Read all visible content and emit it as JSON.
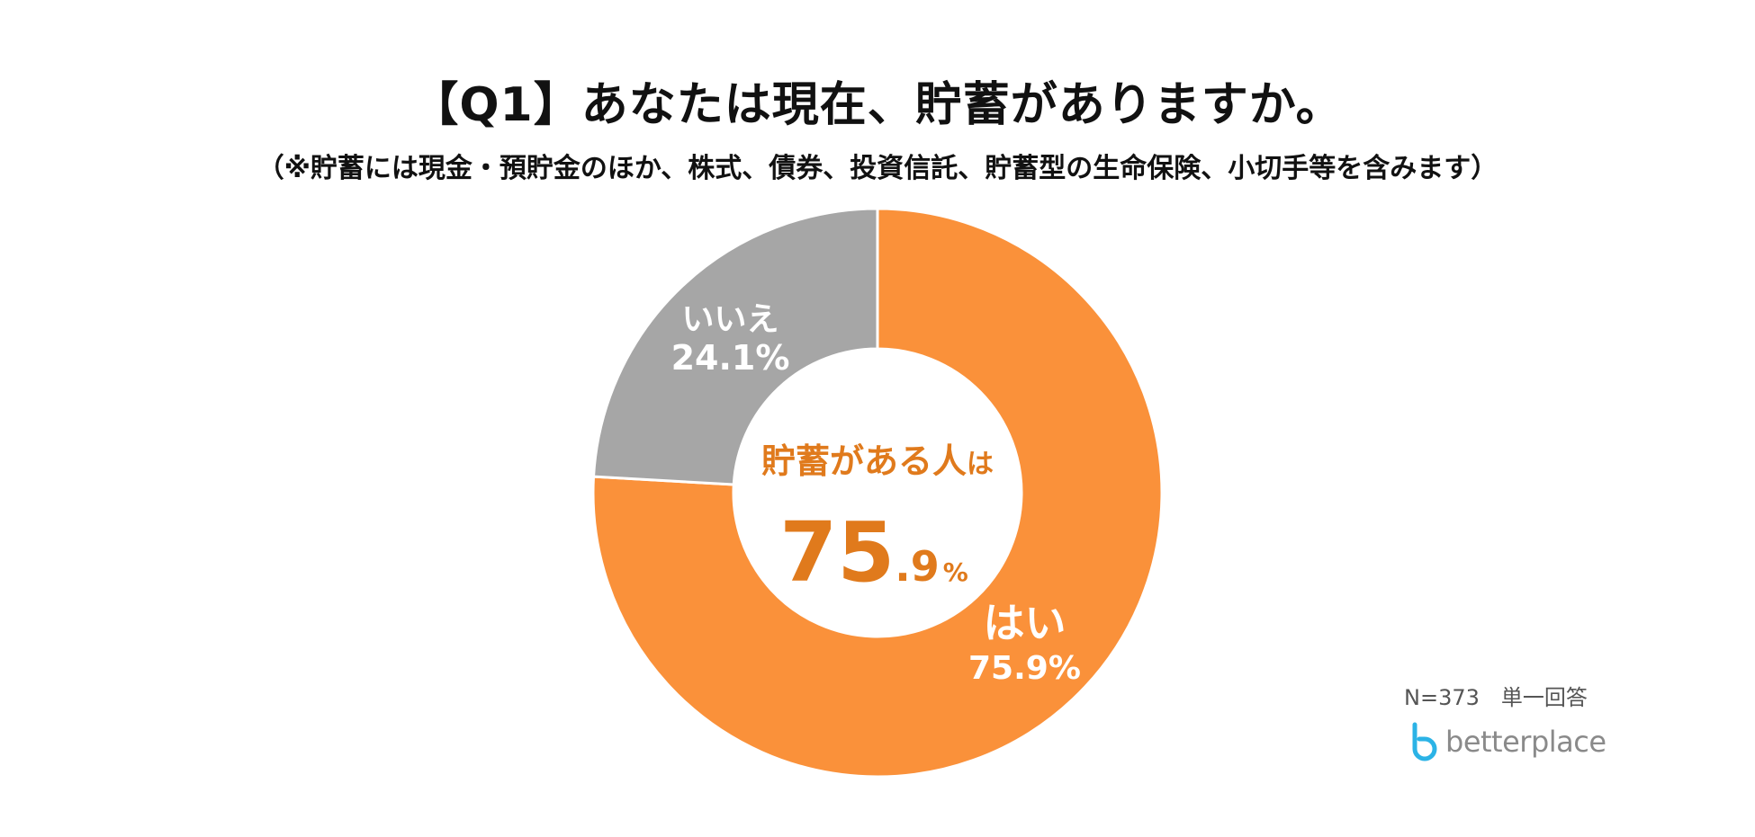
{
  "title": "【Q1】あなたは現在、貯蓄がありますか。",
  "subtitle": "（※貯蓄には現金・預貯金のほか、株式、債券、投資信託、貯蓄型の生命保険、小切手等を含みます）",
  "sample_note": "N=373　単一回答",
  "brand": {
    "name": "betterplace",
    "mark_color": "#2bb3e6"
  },
  "colors": {
    "yes": "#fa913a",
    "no": "#a6a6a6",
    "center_text": "#e07a1c",
    "slice_label": "#ffffff"
  },
  "chart_data": {
    "type": "pie",
    "variant": "donut",
    "categories": [
      "はい",
      "いいえ"
    ],
    "values": [
      75.9,
      24.1
    ],
    "value_labels": [
      "75.9%",
      "24.1%"
    ],
    "title": "【Q1】あなたは現在、貯蓄がありますか。",
    "center_label": {
      "caption_main": "貯蓄がある人",
      "caption_suffix": "は",
      "value_int": "75",
      "value_dec": ".9",
      "unit": "%"
    }
  }
}
